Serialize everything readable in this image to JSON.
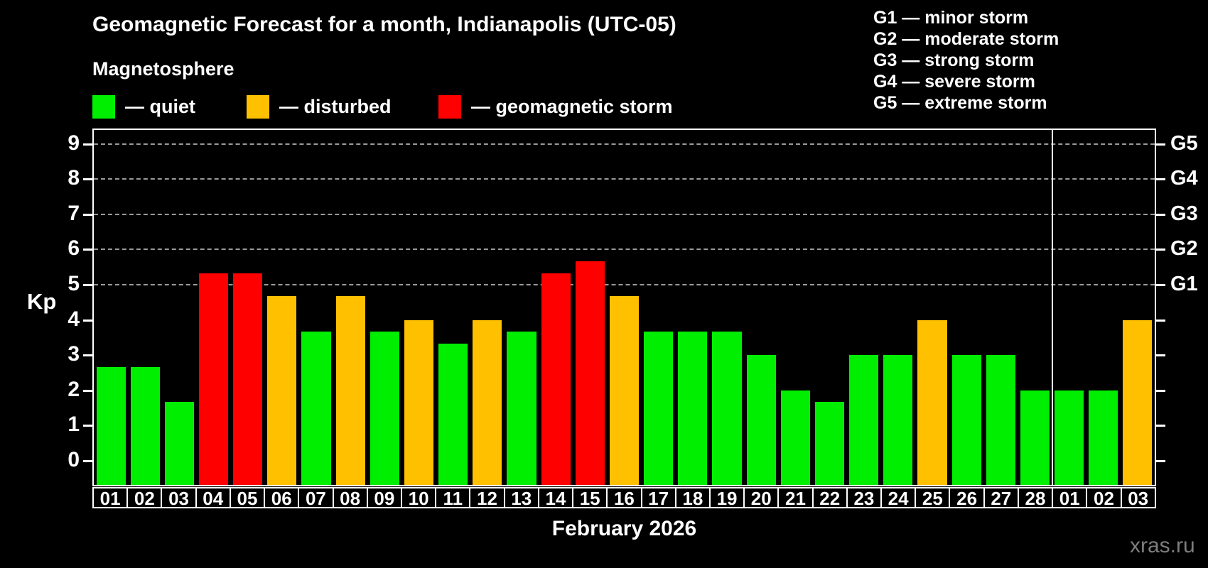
{
  "header": {
    "title": "Geomagnetic Forecast for a month, Indianapolis (UTC-05)",
    "subtitle": "Magnetosphere"
  },
  "magnetosphere_legend": {
    "quiet_label": "— quiet",
    "disturbed_label": "— disturbed",
    "storm_label": "— geomagnetic storm"
  },
  "storm_scale_legend": {
    "lines": [
      "G1 — minor storm",
      "G2 — moderate storm",
      "G3 — strong storm",
      "G4 — severe storm",
      "G5 — extreme storm"
    ]
  },
  "axis": {
    "kp_label": "Kp",
    "y_tick_labels": [
      "0",
      "1",
      "2",
      "3",
      "4",
      "5",
      "6",
      "7",
      "8",
      "9"
    ],
    "right_labels": [
      "G1",
      "G2",
      "G3",
      "G4",
      "G5"
    ],
    "month_label": "February 2026"
  },
  "watermark": "xras.ru",
  "colors": {
    "quiet": "#00ee00",
    "disturbed": "#ffc000",
    "storm": "#ff0000",
    "grid": "#9a9a9a",
    "axis": "#ffffff",
    "watermark": "#7d7d7d"
  },
  "chart_data": {
    "type": "bar",
    "title": "Geomagnetic Forecast for a month, Indianapolis (UTC-05)",
    "xlabel": "February 2026",
    "ylabel": "Kp",
    "ylim": [
      -0.7,
      9.4
    ],
    "grid": "dashed horizontal lines at Kp 5-9 only",
    "gridline_levels": [
      5,
      6,
      7,
      8,
      9
    ],
    "right_axis_levels": {
      "G1": 5,
      "G2": 6,
      "G3": 7,
      "G4": 8,
      "G5": 9
    },
    "month_separator_after_index": 27,
    "categories": [
      "01",
      "02",
      "03",
      "04",
      "05",
      "06",
      "07",
      "08",
      "09",
      "10",
      "11",
      "12",
      "13",
      "14",
      "15",
      "16",
      "17",
      "18",
      "19",
      "20",
      "21",
      "22",
      "23",
      "24",
      "25",
      "26",
      "27",
      "28",
      "01",
      "02",
      "03"
    ],
    "values": [
      2.67,
      2.67,
      1.67,
      5.33,
      5.33,
      4.67,
      3.67,
      4.67,
      3.67,
      4.0,
      3.33,
      4.0,
      3.67,
      5.33,
      5.67,
      4.67,
      3.67,
      3.67,
      3.67,
      3.0,
      2.0,
      1.67,
      3.0,
      3.0,
      4.0,
      3.0,
      3.0,
      2.0,
      2.0,
      2.0,
      4.0
    ],
    "statuses": [
      "quiet",
      "quiet",
      "quiet",
      "storm",
      "storm",
      "disturbed",
      "quiet",
      "disturbed",
      "quiet",
      "disturbed",
      "quiet",
      "disturbed",
      "quiet",
      "storm",
      "storm",
      "disturbed",
      "quiet",
      "quiet",
      "quiet",
      "quiet",
      "quiet",
      "quiet",
      "quiet",
      "quiet",
      "disturbed",
      "quiet",
      "quiet",
      "quiet",
      "quiet",
      "quiet",
      "disturbed"
    ],
    "legend": [
      {
        "status": "quiet",
        "label": "— quiet",
        "color": "#00ee00"
      },
      {
        "status": "disturbed",
        "label": "— disturbed",
        "color": "#ffc000"
      },
      {
        "status": "storm",
        "label": "— geomagnetic storm",
        "color": "#ff0000"
      }
    ]
  }
}
